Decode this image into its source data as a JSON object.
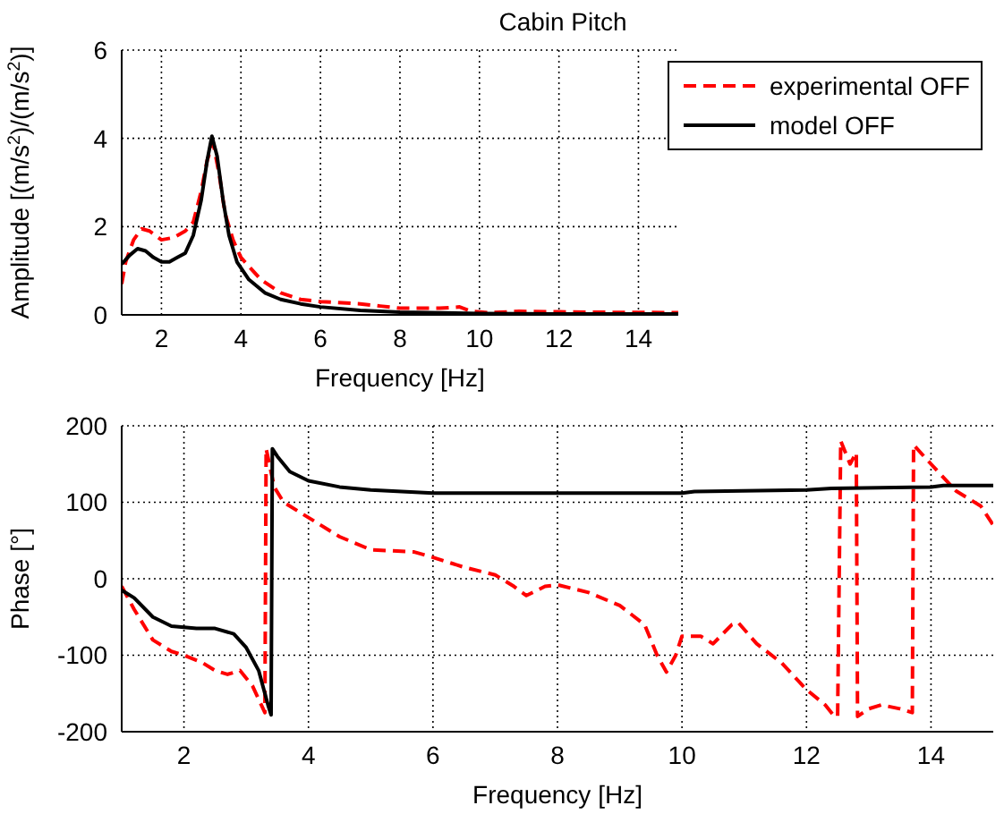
{
  "chart_data": [
    {
      "type": "line",
      "title": "Cabin Pitch",
      "xlabel": "Frequency [Hz]",
      "ylabel": "Amplitude [(m/s$^{2}$)/(m/s$^{2}$)]",
      "xlim": [
        1,
        15
      ],
      "xticks": [
        2,
        4,
        6,
        8,
        10,
        12,
        14
      ],
      "ylim": [
        0,
        6
      ],
      "yticks": [
        0,
        2,
        4,
        6
      ],
      "grid": true,
      "legend": "top right",
      "marker": "none",
      "series": [
        {
          "name": "experimental OFF",
          "color": "#ff0000",
          "line_style": "dashed",
          "x": [
            1.0,
            1.1,
            1.3,
            1.5,
            1.7,
            2.0,
            2.3,
            2.6,
            2.8,
            3.0,
            3.15,
            3.3,
            3.45,
            3.6,
            3.8,
            4.0,
            4.5,
            5.0,
            5.5,
            6,
            7,
            7.5,
            8,
            9,
            9.5,
            9.8,
            10.2,
            11,
            12,
            13,
            15
          ],
          "values": [
            0.7,
            1.2,
            1.7,
            1.95,
            1.9,
            1.7,
            1.75,
            1.9,
            2.1,
            2.8,
            3.5,
            3.9,
            3.2,
            2.3,
            1.7,
            1.3,
            0.8,
            0.5,
            0.35,
            0.3,
            0.25,
            0.2,
            0.15,
            0.15,
            0.18,
            0.08,
            0.05,
            0.08,
            0.07,
            0.06,
            0.05
          ]
        },
        {
          "name": "model OFF",
          "color": "#000000",
          "line_style": "solid",
          "x": [
            1.0,
            1.2,
            1.4,
            1.6,
            1.8,
            2.0,
            2.2,
            2.4,
            2.6,
            2.8,
            3.0,
            3.15,
            3.27,
            3.4,
            3.55,
            3.7,
            3.9,
            4.2,
            4.6,
            5.0,
            5.5,
            6,
            7,
            8,
            10,
            12,
            15
          ],
          "values": [
            1.15,
            1.35,
            1.5,
            1.45,
            1.3,
            1.2,
            1.2,
            1.3,
            1.4,
            1.8,
            2.6,
            3.5,
            4.05,
            3.6,
            2.6,
            1.8,
            1.2,
            0.8,
            0.5,
            0.35,
            0.25,
            0.18,
            0.1,
            0.06,
            0.03,
            0.02,
            0.02
          ]
        }
      ]
    },
    {
      "type": "line",
      "xlabel": "Frequency [Hz]",
      "ylabel": "Phase [°]",
      "xlim": [
        1,
        15
      ],
      "xticks": [
        2,
        4,
        6,
        8,
        10,
        12,
        14
      ],
      "ylim": [
        -200,
        200
      ],
      "yticks": [
        -200,
        -100,
        0,
        100,
        200
      ],
      "grid": true,
      "marker": "none",
      "series": [
        {
          "color": "#ff0000",
          "line_style": "dashed",
          "x": [
            1.0,
            1.2,
            1.5,
            1.8,
            2.0,
            2.3,
            2.5,
            2.7,
            2.9,
            3.1,
            3.3,
            3.32,
            3.45,
            3.6,
            4.0,
            4.5,
            5.0,
            5.7,
            6.0,
            6.5,
            7.0,
            7.3,
            7.5,
            7.8,
            8.0,
            8.5,
            9.0,
            9.4,
            9.6,
            9.75,
            9.9,
            10.0,
            10.3,
            10.5,
            10.8,
            10.9,
            11.2,
            11.6,
            12.0,
            12.3,
            12.45,
            12.5,
            12.55,
            12.7,
            12.8,
            12.82,
            13.0,
            13.2,
            13.5,
            13.7,
            13.72,
            14.0,
            14.4,
            14.8,
            15.0
          ],
          "values": [
            -10,
            -40,
            -80,
            -95,
            -100,
            -110,
            -120,
            -125,
            -120,
            -140,
            -175,
            170,
            120,
            100,
            80,
            55,
            38,
            35,
            28,
            15,
            5,
            -10,
            -22,
            -10,
            -8,
            -18,
            -35,
            -60,
            -100,
            -122,
            -100,
            -75,
            -75,
            -85,
            -60,
            -57,
            -85,
            -110,
            -145,
            -165,
            -180,
            -180,
            180,
            150,
            165,
            -180,
            -170,
            -165,
            -170,
            -175,
            175,
            150,
            115,
            95,
            70
          ]
        },
        {
          "color": "#000000",
          "line_style": "solid",
          "x": [
            1.0,
            1.2,
            1.5,
            1.8,
            2.2,
            2.5,
            2.8,
            3.0,
            3.2,
            3.35,
            3.4,
            3.42,
            3.5,
            3.7,
            4.0,
            4.5,
            5.0,
            6,
            8,
            10,
            10.2,
            12,
            12.4,
            14,
            14.2,
            15
          ],
          "values": [
            -15,
            -25,
            -50,
            -62,
            -65,
            -65,
            -72,
            -90,
            -120,
            -165,
            -178,
            170,
            160,
            140,
            128,
            120,
            116,
            112,
            112,
            112,
            114,
            116,
            118,
            120,
            122,
            122
          ]
        }
      ]
    }
  ]
}
